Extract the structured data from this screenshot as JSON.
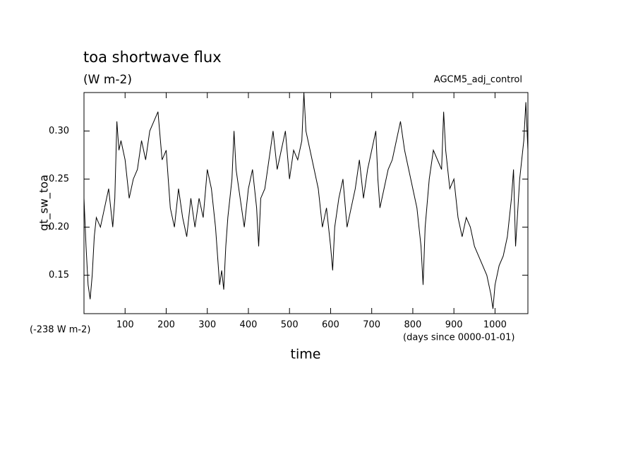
{
  "chart_data": {
    "type": "line",
    "title": "toa shortwave flux",
    "subtitle": "(W m-2)",
    "annotation_right": "AGCM5_adj_control",
    "ylabel": "gt_sw_toa",
    "y_offset_note": "(-238 W m-2)",
    "x_unit_note": "(days since 0000-01-01)",
    "xlabel": "time",
    "color": "#000000",
    "xlim": [
      0,
      1080
    ],
    "ylim": [
      0.11,
      0.34
    ],
    "xticks": [
      100,
      200,
      300,
      400,
      500,
      600,
      700,
      800,
      900,
      1000
    ],
    "yticks": [
      0.15,
      {
        "value": 0.2,
        "label": "0.20"
      },
      0.25,
      {
        "value": 0.3,
        "label": "0.30"
      }
    ],
    "x": [
      0,
      5,
      10,
      15,
      20,
      25,
      30,
      40,
      50,
      60,
      70,
      75,
      80,
      85,
      90,
      100,
      110,
      120,
      130,
      140,
      150,
      160,
      170,
      180,
      190,
      200,
      210,
      220,
      230,
      240,
      250,
      260,
      270,
      280,
      290,
      300,
      310,
      320,
      325,
      330,
      335,
      340,
      345,
      350,
      360,
      365,
      370,
      380,
      390,
      400,
      410,
      420,
      425,
      430,
      440,
      450,
      460,
      470,
      480,
      490,
      500,
      510,
      520,
      530,
      535,
      540,
      550,
      560,
      570,
      580,
      590,
      600,
      605,
      610,
      620,
      630,
      640,
      650,
      660,
      670,
      680,
      690,
      700,
      710,
      715,
      720,
      730,
      740,
      750,
      760,
      770,
      780,
      790,
      800,
      810,
      820,
      825,
      830,
      840,
      850,
      860,
      870,
      875,
      880,
      890,
      900,
      910,
      920,
      930,
      940,
      950,
      960,
      970,
      980,
      990,
      995,
      1000,
      1010,
      1020,
      1030,
      1040,
      1045,
      1050,
      1060,
      1070,
      1075,
      1080
    ],
    "values": [
      0.23,
      0.18,
      0.14,
      0.125,
      0.15,
      0.19,
      0.21,
      0.2,
      0.22,
      0.24,
      0.2,
      0.23,
      0.31,
      0.28,
      0.29,
      0.27,
      0.23,
      0.25,
      0.26,
      0.29,
      0.27,
      0.3,
      0.31,
      0.32,
      0.27,
      0.28,
      0.22,
      0.2,
      0.24,
      0.21,
      0.19,
      0.23,
      0.2,
      0.23,
      0.21,
      0.26,
      0.24,
      0.2,
      0.17,
      0.14,
      0.155,
      0.135,
      0.18,
      0.21,
      0.25,
      0.3,
      0.26,
      0.23,
      0.2,
      0.24,
      0.26,
      0.22,
      0.18,
      0.23,
      0.24,
      0.27,
      0.3,
      0.26,
      0.28,
      0.3,
      0.25,
      0.28,
      0.27,
      0.29,
      0.34,
      0.3,
      0.28,
      0.26,
      0.24,
      0.2,
      0.22,
      0.18,
      0.155,
      0.2,
      0.23,
      0.25,
      0.2,
      0.22,
      0.24,
      0.27,
      0.23,
      0.26,
      0.28,
      0.3,
      0.25,
      0.22,
      0.24,
      0.26,
      0.27,
      0.29,
      0.31,
      0.28,
      0.26,
      0.24,
      0.22,
      0.18,
      0.14,
      0.2,
      0.25,
      0.28,
      0.27,
      0.26,
      0.32,
      0.28,
      0.24,
      0.25,
      0.21,
      0.19,
      0.21,
      0.2,
      0.18,
      0.17,
      0.16,
      0.15,
      0.13,
      0.115,
      0.14,
      0.16,
      0.17,
      0.19,
      0.23,
      0.26,
      0.18,
      0.25,
      0.29,
      0.33,
      0.28
    ]
  }
}
